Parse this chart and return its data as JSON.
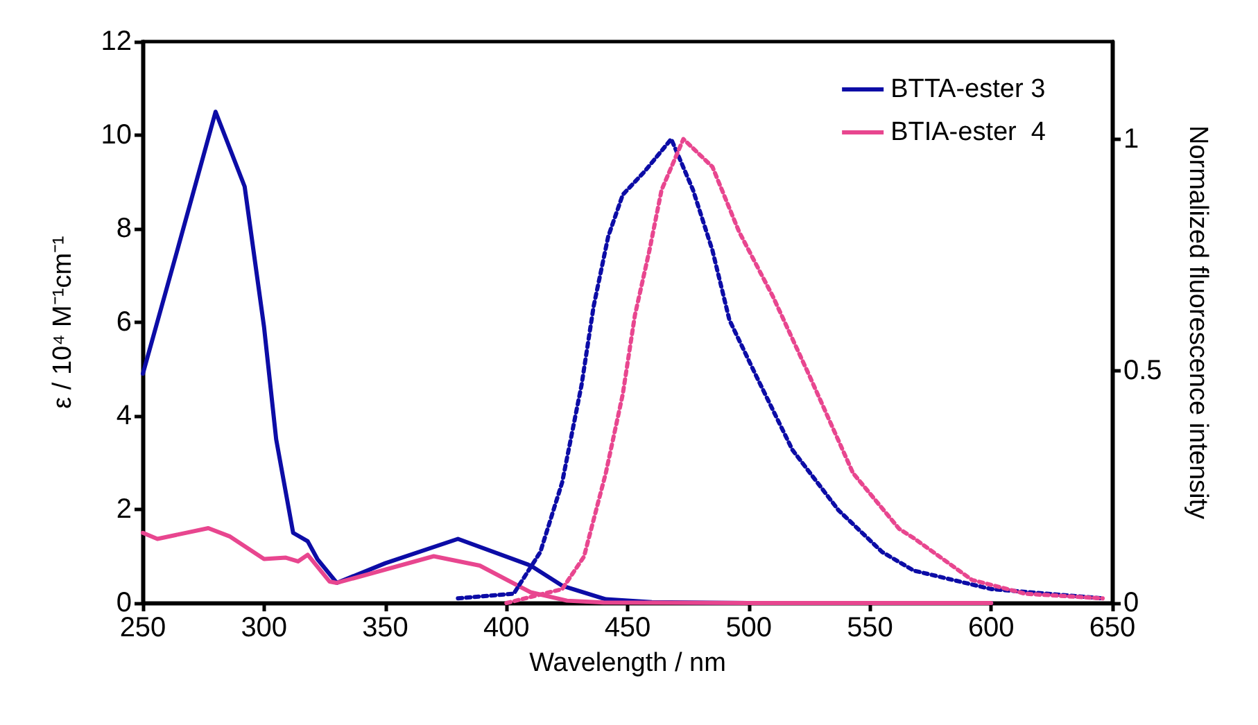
{
  "chart_data": {
    "type": "line",
    "xlabel": "Wavelength / nm",
    "ylabel": "ε / 10⁴ M⁻¹cm⁻¹",
    "y2label": "Normalized fluorescence intensity",
    "xlim": [
      250,
      650
    ],
    "xticks": [
      250,
      300,
      350,
      400,
      450,
      500,
      550,
      600,
      650
    ],
    "ylim": [
      0,
      12
    ],
    "yticks": [
      0,
      2,
      4,
      6,
      8,
      10,
      12
    ],
    "y2lim": [
      0,
      1.21
    ],
    "y2ticks": [
      0,
      0.5,
      1
    ],
    "grid": false,
    "legend": "top right",
    "marker": "none",
    "series": [
      {
        "name": "BTTA-ester 3",
        "color": "#0c0ca6",
        "line_style": "solid",
        "x": [
          250,
          264,
          280,
          292,
          300,
          305,
          312,
          318,
          322,
          330,
          350,
          380,
          410,
          423,
          441,
          460,
          500,
          550,
          600
        ],
        "values": [
          4.9,
          7.5,
          10.5,
          8.9,
          5.9,
          3.5,
          1.5,
          1.32,
          0.94,
          0.43,
          0.85,
          1.37,
          0.8,
          0.37,
          0.08,
          0.02,
          0,
          0,
          0
        ]
      },
      {
        "name": "BTIA-ester  4",
        "color": "#e8468f",
        "line_style": "solid",
        "x": [
          250,
          256,
          277,
          286,
          300,
          309,
          314,
          318,
          327,
          330,
          370,
          389,
          410,
          425,
          440,
          500,
          550,
          600
        ],
        "values": [
          1.5,
          1.37,
          1.6,
          1.42,
          0.94,
          0.97,
          0.89,
          1.03,
          0.46,
          0.43,
          1.0,
          0.8,
          0.23,
          0.05,
          0.01,
          0,
          0,
          0
        ]
      },
      {
        "color": "#0c0ca6",
        "line_style": "dotted",
        "axis": "y2",
        "x": [
          380,
          403,
          414,
          423,
          431,
          436,
          442,
          448,
          457,
          468,
          477,
          485,
          492,
          503,
          518,
          537,
          555,
          568,
          600,
          646
        ],
        "values": [
          0.01,
          0.02,
          0.11,
          0.26,
          0.47,
          0.64,
          0.79,
          0.88,
          0.93,
          1.0,
          0.89,
          0.76,
          0.61,
          0.49,
          0.33,
          0.2,
          0.11,
          0.07,
          0.03,
          0.01
        ]
      },
      {
        "color": "#e8468f",
        "line_style": "dotted",
        "axis": "y2",
        "x": [
          400,
          423,
          432,
          441,
          448,
          453,
          459,
          464,
          473,
          485,
          496,
          510,
          525,
          543,
          562,
          568,
          592,
          614,
          646
        ],
        "values": [
          0,
          0.03,
          0.1,
          0.28,
          0.45,
          0.62,
          0.76,
          0.89,
          1.0,
          0.94,
          0.8,
          0.66,
          0.49,
          0.28,
          0.16,
          0.14,
          0.05,
          0.02,
          0.01
        ]
      }
    ]
  }
}
